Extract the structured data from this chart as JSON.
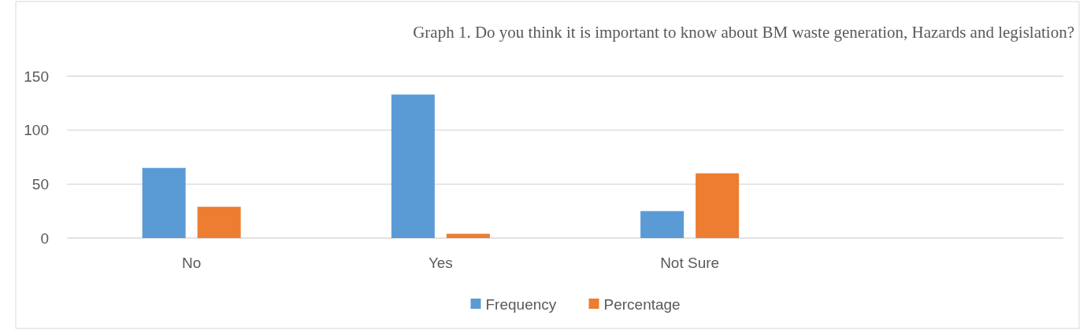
{
  "chart_data": {
    "type": "bar",
    "title": "Graph 1. Do you think it is important to know about BM waste generation, Hazards and legislation?",
    "categories": [
      "No",
      "Yes",
      "Not Sure",
      null
    ],
    "series": [
      {
        "name": "Frequency",
        "color": "#5b9bd5",
        "values": [
          65,
          133,
          25,
          null
        ]
      },
      {
        "name": "Percentage",
        "color": "#ed7d31",
        "values": [
          29,
          4,
          60,
          null
        ]
      }
    ],
    "ylim": [
      0,
      150
    ],
    "yticks": [
      0,
      50,
      100,
      150
    ],
    "grid": "y",
    "legend": "bottom"
  }
}
